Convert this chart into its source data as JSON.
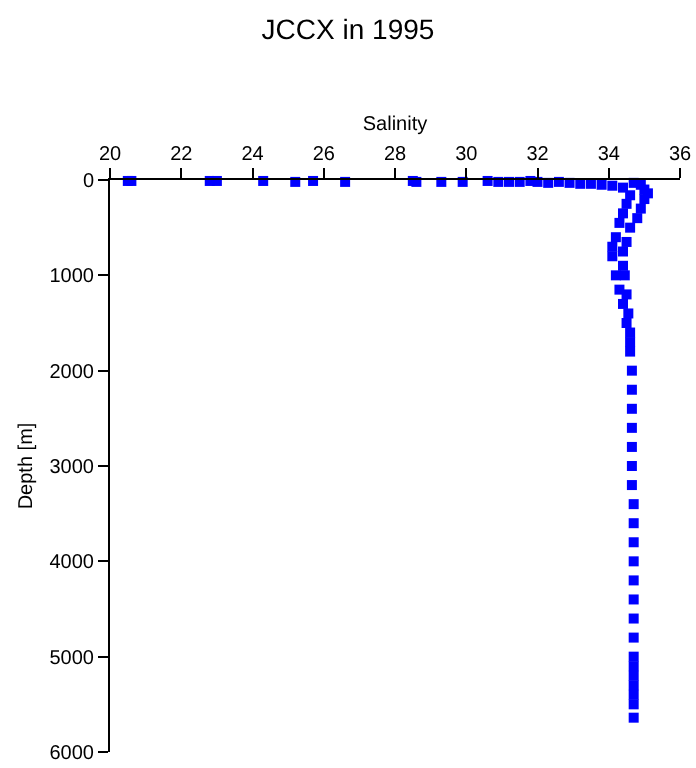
{
  "chart_data": {
    "type": "scatter",
    "title": "JCCX in 1995",
    "xlabel": "Salinity",
    "ylabel": "Depth [m]",
    "marker": "square",
    "grid": false,
    "xlim": [
      20,
      36
    ],
    "xticks": [
      20,
      22,
      24,
      26,
      28,
      30,
      32,
      34,
      36
    ],
    "ylim": [
      6000,
      0
    ],
    "yticks": [
      0,
      1000,
      2000,
      3000,
      4000,
      5000,
      6000
    ],
    "series": [
      {
        "color": "#0000ff",
        "x": [
          20.5,
          20.6,
          22.8,
          23.0,
          24.3,
          25.2,
          25.7,
          26.6,
          28.5,
          28.6,
          29.3,
          29.9,
          30.6,
          30.9,
          31.2,
          31.5,
          31.8,
          32.0,
          32.3,
          32.6,
          32.9,
          33.2,
          33.5,
          33.8,
          34.1,
          34.4,
          34.7,
          34.9,
          35.0,
          35.1,
          34.6,
          35.0,
          34.5,
          34.9,
          34.4,
          34.8,
          34.3,
          34.6,
          34.2,
          34.5,
          34.1,
          34.4,
          34.1,
          34.4,
          34.2,
          34.45,
          34.3,
          34.5,
          34.4,
          34.55,
          34.5,
          34.6,
          34.6,
          34.6,
          34.65,
          34.65,
          34.65,
          34.65,
          34.65,
          34.65,
          34.65,
          34.7,
          34.7,
          34.7,
          34.7,
          34.7,
          34.7,
          34.7,
          34.7,
          34.7,
          34.7,
          34.7,
          34.7,
          34.7,
          34.7,
          34.7
        ],
        "values": [
          10,
          10,
          10,
          10,
          10,
          20,
          10,
          20,
          10,
          20,
          20,
          20,
          10,
          20,
          20,
          20,
          10,
          20,
          30,
          20,
          30,
          40,
          40,
          50,
          60,
          80,
          30,
          50,
          100,
          140,
          160,
          200,
          250,
          300,
          350,
          400,
          450,
          500,
          600,
          650,
          700,
          750,
          800,
          900,
          1000,
          1000,
          1150,
          1200,
          1300,
          1400,
          1500,
          1600,
          1700,
          1800,
          2000,
          2200,
          2400,
          2600,
          2800,
          3000,
          3200,
          3400,
          3600,
          3800,
          4000,
          4200,
          4400,
          4600,
          4800,
          5000,
          5100,
          5200,
          5300,
          5400,
          5500,
          5640
        ]
      }
    ]
  }
}
